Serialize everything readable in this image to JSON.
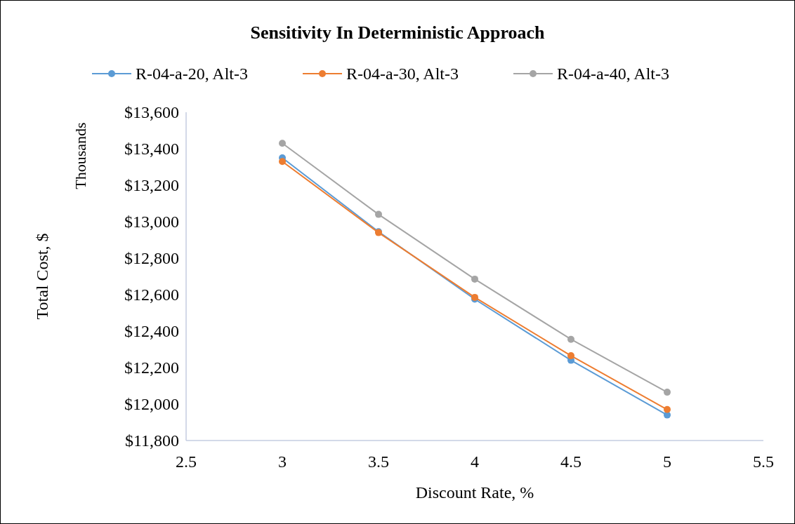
{
  "chart_data": {
    "type": "line",
    "title": "Sensitivity In Deterministic Approach",
    "xlabel": "Discount Rate, %",
    "ylabel": "Total Cost, $",
    "annotations": [
      "Thousands"
    ],
    "x": [
      3,
      3.5,
      4,
      4.5,
      5
    ],
    "series": [
      {
        "name": "R-04-a-20, Alt-3",
        "color": "#5b9bd5",
        "values": [
          13350,
          12945,
          12575,
          12240,
          11940
        ]
      },
      {
        "name": "R-04-a-30, Alt-3",
        "color": "#ed7d31",
        "values": [
          13330,
          12940,
          12585,
          12265,
          11970
        ]
      },
      {
        "name": "R-04-a-40, Alt-3",
        "color": "#a5a5a5",
        "values": [
          13430,
          13040,
          12685,
          12355,
          12065
        ]
      }
    ],
    "xlim": [
      2.5,
      5.5
    ],
    "xticks": [
      2.5,
      3,
      3.5,
      4,
      4.5,
      5,
      5.5
    ],
    "ylim": [
      11800,
      13600
    ],
    "yticks": [
      {
        "value": 11800,
        "label": "$11,800"
      },
      {
        "value": 12000,
        "label": "$12,000"
      },
      {
        "value": 12200,
        "label": "$12,200"
      },
      {
        "value": 12400,
        "label": "$12,400"
      },
      {
        "value": 12600,
        "label": "$12,600"
      },
      {
        "value": 12800,
        "label": "$12,800"
      },
      {
        "value": 13000,
        "label": "$13,000"
      },
      {
        "value": 13200,
        "label": "$13,200"
      },
      {
        "value": 13400,
        "label": "$13,400"
      },
      {
        "value": 13600,
        "label": "$13,600"
      }
    ],
    "grid": false,
    "legend": "top",
    "marker": "circle",
    "line_style": "solid"
  }
}
